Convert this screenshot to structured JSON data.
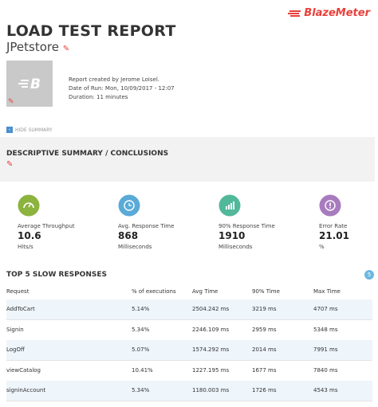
{
  "header": {
    "brand": "BlazeMeter",
    "title": "LOAD TEST REPORT",
    "subtitle": "JPetstore",
    "info": [
      "Report created by Jerome Loisel.",
      "Date of Run: Mon, 10/09/2017 - 12:07",
      "Duration: 11 minutes"
    ]
  },
  "toggle": "HIDE SUMMARY",
  "summary": {
    "title": "DESCRIPTIVE SUMMARY / CONCLUSIONS"
  },
  "metrics": [
    {
      "label": "Average Throughput",
      "value": "10.6",
      "unit": "Hits/s",
      "color": "#8db33f"
    },
    {
      "label": "Avg. Response Time",
      "value": "868",
      "unit": "Milliseconds",
      "color": "#5aaad8"
    },
    {
      "label": "90% Response Time",
      "value": "1910",
      "unit": "Milliseconds",
      "color": "#52b89a"
    },
    {
      "label": "Error Rate",
      "value": "21.01",
      "unit": "%",
      "color": "#a87bbf"
    }
  ],
  "table": {
    "title": "TOP 5 SLOW RESPONSES",
    "badge": "5",
    "columns": [
      "Request",
      "% of executions",
      "Avg Time",
      "90% Time",
      "Max Time"
    ],
    "rows": [
      [
        "AddToCart",
        "5.14%",
        "2504.242 ms",
        "3219 ms",
        "4707 ms"
      ],
      [
        "Signin",
        "5.34%",
        "2246.109 ms",
        "2959 ms",
        "5348 ms"
      ],
      [
        "LogOff",
        "5.07%",
        "1574.292 ms",
        "2014 ms",
        "7991 ms"
      ],
      [
        "viewCatalog",
        "10.41%",
        "1227.195 ms",
        "1677 ms",
        "7840 ms"
      ],
      [
        "signinAccount",
        "5.34%",
        "1180.003 ms",
        "1726 ms",
        "4543 ms"
      ]
    ]
  }
}
